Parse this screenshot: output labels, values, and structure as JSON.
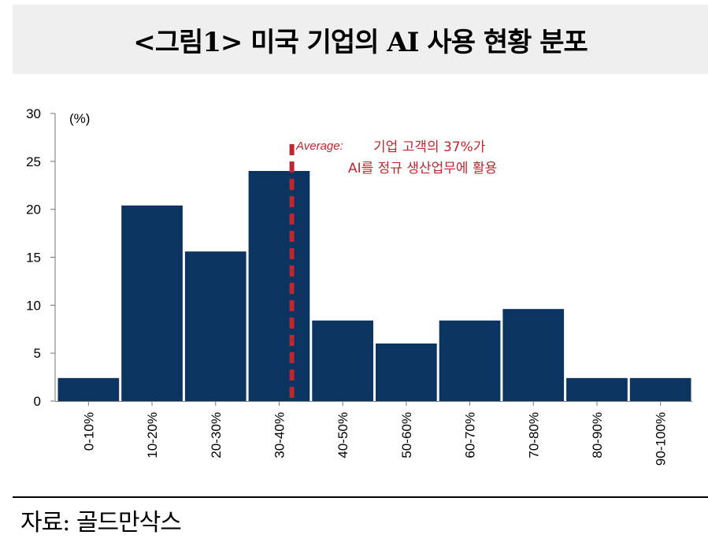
{
  "title": "<그림1> 미국 기업의 AI 사용 현황 분포",
  "source": "자료: 골드만삭스",
  "colors": {
    "bar": "#0b3460",
    "average_line": "#c0262e",
    "annotation": "#c0262e",
    "title_bg": "#efefef"
  },
  "chart_data": {
    "type": "bar",
    "title": "",
    "xlabel": "",
    "ylabel": "(%)",
    "ylim": [
      0,
      30
    ],
    "yticks": [
      0,
      5,
      10,
      15,
      20,
      25,
      30
    ],
    "grid": false,
    "categories": [
      "0-10%",
      "10-20%",
      "20-30%",
      "30-40%",
      "40-50%",
      "50-60%",
      "60-70%",
      "70-80%",
      "80-90%",
      "90-100%"
    ],
    "values": [
      2.4,
      20.4,
      15.6,
      24.0,
      8.4,
      6.0,
      8.4,
      9.6,
      2.4,
      2.4
    ],
    "average": {
      "x": 37,
      "label": "Average:",
      "annotation_line1": "기업 고객의 37%가",
      "annotation_line2": "AI를 정규 생산업무에 활용"
    }
  }
}
